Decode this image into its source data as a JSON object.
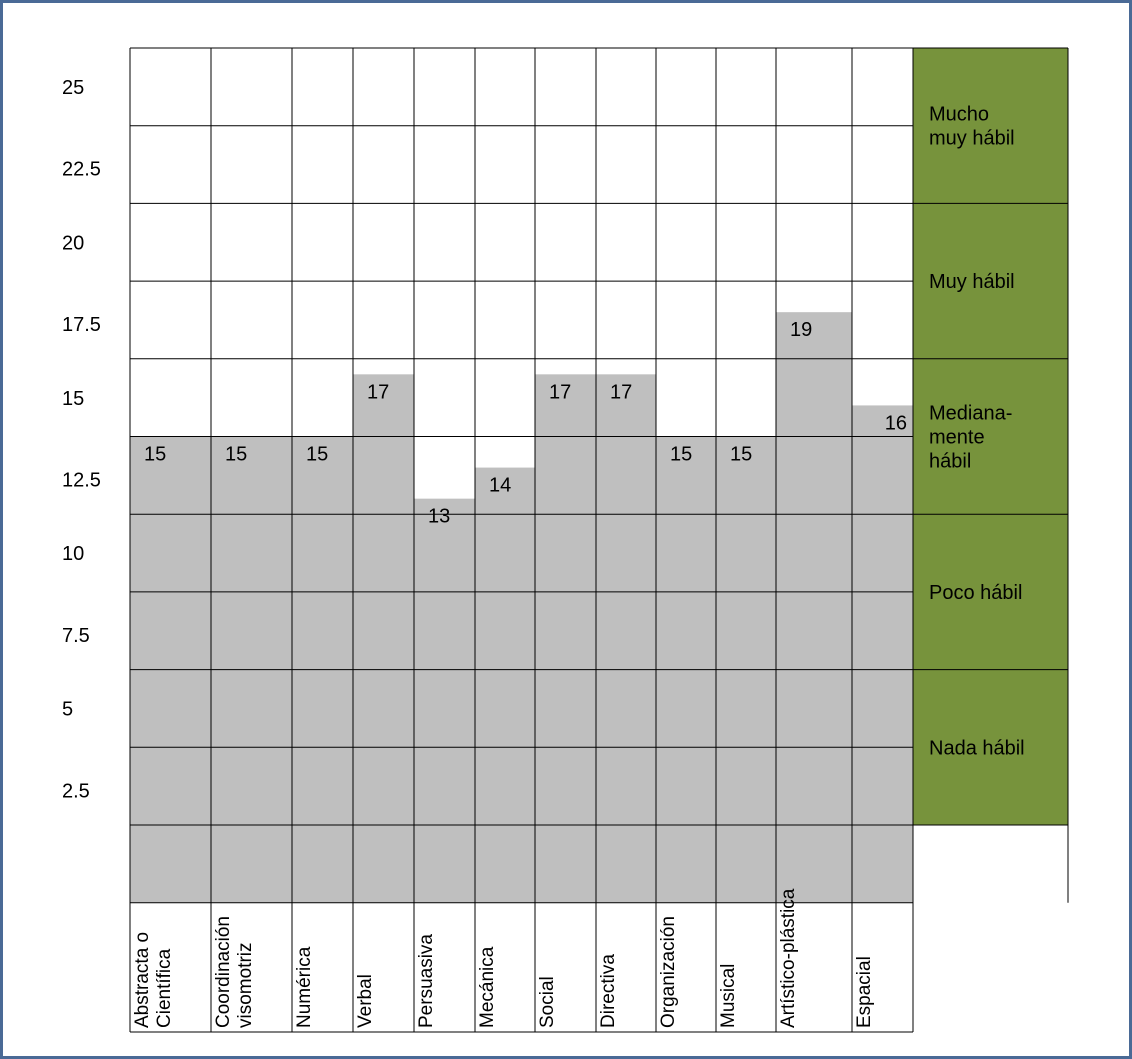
{
  "colors": {
    "bar_fill": "#bfbfbf",
    "band_fill": "#77933c",
    "grid_line": "#000000",
    "frame_border": "#4a6a96"
  },
  "chart_data": {
    "type": "bar",
    "title": "",
    "xlabel": "",
    "ylabel": "",
    "ylim": [
      0,
      27.5
    ],
    "y_ticks": [
      "25",
      "22.5",
      "20",
      "17.5",
      "15",
      "12.5",
      "10",
      "7.5",
      "5",
      "2.5"
    ],
    "categories": [
      "Abstracta o Científica",
      "Coordinación visomotriz",
      "Numérica",
      "Verbal",
      "Persuasiva",
      "Mecánica",
      "Social",
      "Directiva",
      "Organización",
      "Musical",
      "Artístico-plástica",
      "Espacial"
    ],
    "values": [
      15,
      15,
      15,
      17,
      13,
      14,
      17,
      17,
      15,
      15,
      19,
      16
    ],
    "data_labels": [
      "15",
      "15",
      "15",
      "17",
      "13",
      "14",
      "17",
      "17",
      "15",
      "15",
      "19",
      "16"
    ],
    "bands": [
      {
        "label": "Mucho muy hábil",
        "lines": [
          "Mucho",
          "muy hábil"
        ],
        "from": 22.5,
        "to": 27.5
      },
      {
        "label": "Muy hábil",
        "lines": [
          "Muy hábil"
        ],
        "from": 17.5,
        "to": 22.5
      },
      {
        "label": "Medianamente hábil",
        "lines": [
          "Mediana-",
          "mente",
          "hábil"
        ],
        "from": 12.5,
        "to": 17.5
      },
      {
        "label": "Poco hábil",
        "lines": [
          "Poco hábil"
        ],
        "from": 7.5,
        "to": 12.5
      },
      {
        "label": "Nada hábil",
        "lines": [
          "Nada hábil"
        ],
        "from": 2.5,
        "to": 7.5
      }
    ],
    "grid": true
  }
}
